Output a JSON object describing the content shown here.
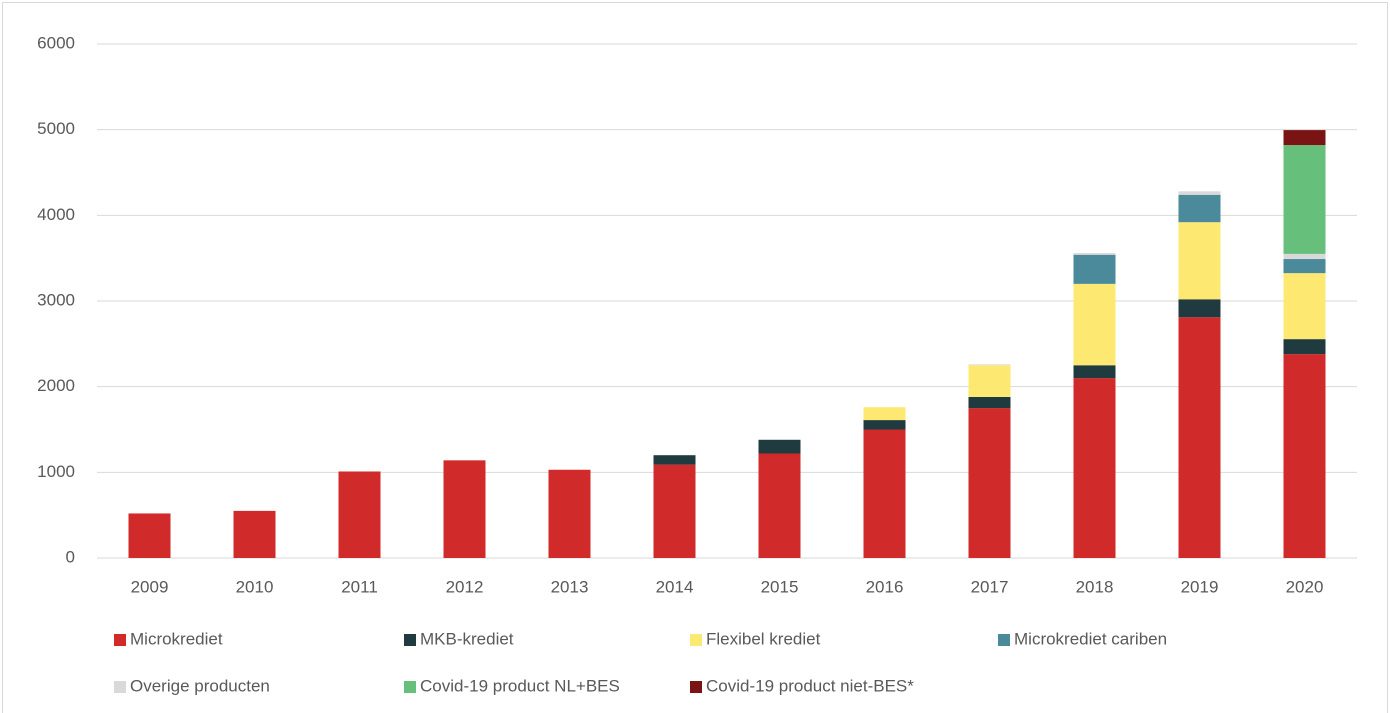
{
  "chart_data": {
    "type": "stacked_bar",
    "categories": [
      "2009",
      "2010",
      "2011",
      "2012",
      "2013",
      "2014",
      "2015",
      "2016",
      "2017",
      "2018",
      "2019",
      "2020"
    ],
    "series": [
      {
        "name": "Microkrediet",
        "color": "#d12a2a",
        "values": [
          520,
          550,
          1010,
          1140,
          1030,
          1090,
          1220,
          1500,
          1750,
          2100,
          2810,
          2380
        ]
      },
      {
        "name": "MKB-krediet",
        "color": "#1f3b40",
        "values": [
          0,
          0,
          0,
          0,
          0,
          110,
          160,
          110,
          130,
          150,
          210,
          175
        ]
      },
      {
        "name": "Flexibel krediet",
        "color": "#fde972",
        "values": [
          0,
          0,
          0,
          0,
          0,
          0,
          0,
          150,
          370,
          950,
          900,
          770
        ]
      },
      {
        "name": "Microkrediet cariben",
        "color": "#4a8a9a",
        "values": [
          0,
          0,
          0,
          0,
          0,
          0,
          0,
          0,
          0,
          340,
          320,
          165
        ]
      },
      {
        "name": "Overige producten",
        "color": "#d9d9d9",
        "values": [
          0,
          0,
          0,
          0,
          0,
          0,
          0,
          0,
          10,
          20,
          40,
          60
        ]
      },
      {
        "name": "Covid-19 product NL+BES",
        "color": "#66bf7a",
        "values": [
          0,
          0,
          0,
          0,
          0,
          0,
          0,
          0,
          0,
          0,
          0,
          1270
        ]
      },
      {
        "name": "Covid-19 product niet-BES*",
        "color": "#7a1414",
        "values": [
          0,
          0,
          0,
          0,
          0,
          0,
          0,
          0,
          0,
          0,
          0,
          175
        ]
      }
    ],
    "ylim": [
      0,
      6000
    ],
    "yticks": [
      0,
      1000,
      2000,
      3000,
      4000,
      5000,
      6000
    ],
    "grid": true,
    "legend": "bottom"
  }
}
